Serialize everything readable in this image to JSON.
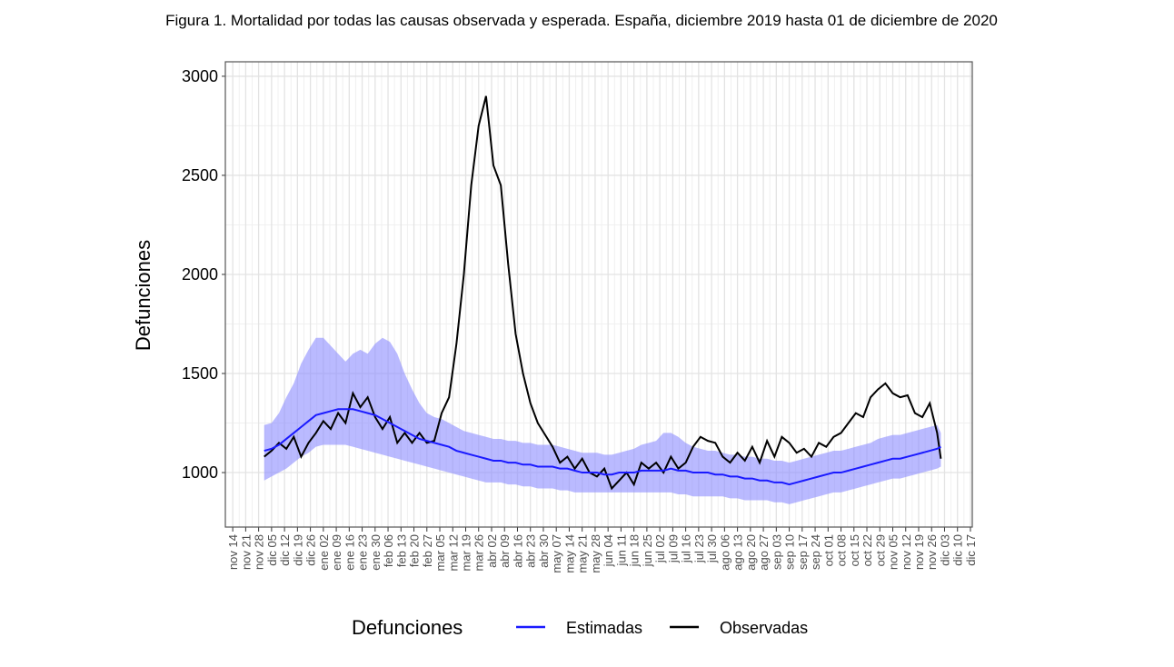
{
  "chart_data": {
    "type": "line",
    "title": "Figura 1. Mortalidad por todas las causas observada y esperada. España, diciembre 2019 hasta 01 de diciembre de 2020",
    "ylabel": "Defunciones",
    "legend_title": "Defunciones",
    "grid": true,
    "ylim": [
      725,
      3073
    ],
    "yticks": [
      1000,
      1500,
      2000,
      2500,
      3000
    ],
    "xlim": [
      "11-10",
      "12-18"
    ],
    "xticks": [
      {
        "value": "11-14",
        "label": "nov 14"
      },
      {
        "value": "11-21",
        "label": "nov 21"
      },
      {
        "value": "11-28",
        "label": "nov 28"
      },
      {
        "value": "12-05",
        "label": "dic 05"
      },
      {
        "value": "12-12",
        "label": "dic 12"
      },
      {
        "value": "12-19",
        "label": "dic 19"
      },
      {
        "value": "12-26",
        "label": "dic 26"
      },
      {
        "value": "01-02",
        "label": "ene 02"
      },
      {
        "value": "01-09",
        "label": "ene 09"
      },
      {
        "value": "01-16",
        "label": "ene 16"
      },
      {
        "value": "01-23",
        "label": "ene 23"
      },
      {
        "value": "01-30",
        "label": "ene 30"
      },
      {
        "value": "02-06",
        "label": "feb 06"
      },
      {
        "value": "02-13",
        "label": "feb 13"
      },
      {
        "value": "02-20",
        "label": "feb 20"
      },
      {
        "value": "02-27",
        "label": "feb 27"
      },
      {
        "value": "03-05",
        "label": "mar 05"
      },
      {
        "value": "03-12",
        "label": "mar 12"
      },
      {
        "value": "03-19",
        "label": "mar 19"
      },
      {
        "value": "03-26",
        "label": "mar 26"
      },
      {
        "value": "04-02",
        "label": "abr 02"
      },
      {
        "value": "04-09",
        "label": "abr 09"
      },
      {
        "value": "04-16",
        "label": "abr 16"
      },
      {
        "value": "04-23",
        "label": "abr 23"
      },
      {
        "value": "04-30",
        "label": "abr 30"
      },
      {
        "value": "05-07",
        "label": "may 07"
      },
      {
        "value": "05-14",
        "label": "may 14"
      },
      {
        "value": "05-21",
        "label": "may 21"
      },
      {
        "value": "05-28",
        "label": "may 28"
      },
      {
        "value": "06-04",
        "label": "jun 04"
      },
      {
        "value": "06-11",
        "label": "jun 11"
      },
      {
        "value": "06-18",
        "label": "jun 18"
      },
      {
        "value": "06-25",
        "label": "jun 25"
      },
      {
        "value": "07-02",
        "label": "jul 02"
      },
      {
        "value": "07-09",
        "label": "jul 09"
      },
      {
        "value": "07-16",
        "label": "jul 16"
      },
      {
        "value": "07-23",
        "label": "jul 23"
      },
      {
        "value": "07-30",
        "label": "jul 30"
      },
      {
        "value": "08-06",
        "label": "ago 06"
      },
      {
        "value": "08-13",
        "label": "ago 13"
      },
      {
        "value": "08-20",
        "label": "ago 20"
      },
      {
        "value": "08-27",
        "label": "ago 27"
      },
      {
        "value": "09-03",
        "label": "sep 03"
      },
      {
        "value": "09-10",
        "label": "sep 10"
      },
      {
        "value": "09-17",
        "label": "sep 17"
      },
      {
        "value": "09-24",
        "label": "sep 24"
      },
      {
        "value": "10-01",
        "label": "oct 01"
      },
      {
        "value": "10-08",
        "label": "oct 08"
      },
      {
        "value": "10-15",
        "label": "oct 15"
      },
      {
        "value": "10-22",
        "label": "oct 22"
      },
      {
        "value": "10-29",
        "label": "oct 29"
      },
      {
        "value": "11-05",
        "label": "nov 05"
      },
      {
        "value": "11-12",
        "label": "nov 12"
      },
      {
        "value": "11-19",
        "label": "nov 19"
      },
      {
        "value": "11-26",
        "label": "nov 26"
      },
      {
        "value": "12-03",
        "label": "dic 03"
      },
      {
        "value": "12-10",
        "label": "dic 10"
      },
      {
        "value": "12-17",
        "label": "dic 17"
      }
    ],
    "x": [
      "12-01",
      "12-05",
      "12-09",
      "12-13",
      "12-17",
      "12-21",
      "12-25",
      "12-29",
      "01-02",
      "01-06",
      "01-10",
      "01-14",
      "01-18",
      "01-22",
      "01-26",
      "01-30",
      "02-03",
      "02-07",
      "02-11",
      "02-15",
      "02-19",
      "02-23",
      "02-27",
      "03-02",
      "03-06",
      "03-10",
      "03-14",
      "03-18",
      "03-22",
      "03-26",
      "03-30",
      "04-03",
      "04-07",
      "04-11",
      "04-15",
      "04-19",
      "04-23",
      "04-27",
      "05-01",
      "05-05",
      "05-09",
      "05-13",
      "05-17",
      "05-21",
      "05-25",
      "05-29",
      "06-02",
      "06-06",
      "06-10",
      "06-14",
      "06-18",
      "06-22",
      "06-26",
      "06-30",
      "07-04",
      "07-08",
      "07-12",
      "07-16",
      "07-20",
      "07-24",
      "07-28",
      "08-01",
      "08-05",
      "08-09",
      "08-13",
      "08-17",
      "08-21",
      "08-25",
      "08-29",
      "09-02",
      "09-06",
      "09-10",
      "09-14",
      "09-18",
      "09-22",
      "09-26",
      "09-30",
      "10-04",
      "10-08",
      "10-12",
      "10-16",
      "10-20",
      "10-24",
      "10-28",
      "11-01",
      "11-05",
      "11-09",
      "11-13",
      "11-17",
      "11-21",
      "11-25",
      "11-29",
      "12-01"
    ],
    "series": [
      {
        "name": "Estimadas",
        "color": "#1a1aff",
        "band_color": "#8c8cff",
        "values": [
          1110,
          1120,
          1140,
          1170,
          1200,
          1230,
          1260,
          1290,
          1300,
          1310,
          1320,
          1320,
          1320,
          1310,
          1300,
          1290,
          1270,
          1250,
          1230,
          1210,
          1190,
          1170,
          1160,
          1150,
          1140,
          1130,
          1110,
          1100,
          1090,
          1080,
          1070,
          1060,
          1060,
          1050,
          1050,
          1040,
          1040,
          1030,
          1030,
          1030,
          1020,
          1020,
          1010,
          1000,
          1000,
          1000,
          990,
          990,
          1000,
          1000,
          1000,
          1010,
          1010,
          1010,
          1010,
          1020,
          1010,
          1010,
          1000,
          1000,
          1000,
          990,
          990,
          980,
          980,
          970,
          970,
          960,
          960,
          950,
          950,
          940,
          950,
          960,
          970,
          980,
          990,
          1000,
          1000,
          1010,
          1020,
          1030,
          1040,
          1050,
          1060,
          1070,
          1070,
          1080,
          1090,
          1100,
          1110,
          1120,
          1130
        ],
        "upper": [
          1240,
          1250,
          1300,
          1380,
          1450,
          1550,
          1620,
          1680,
          1680,
          1640,
          1600,
          1560,
          1600,
          1620,
          1600,
          1650,
          1680,
          1660,
          1600,
          1500,
          1420,
          1350,
          1300,
          1280,
          1270,
          1250,
          1230,
          1210,
          1200,
          1190,
          1180,
          1170,
          1170,
          1160,
          1160,
          1150,
          1150,
          1140,
          1140,
          1140,
          1130,
          1120,
          1110,
          1100,
          1100,
          1100,
          1090,
          1090,
          1100,
          1110,
          1120,
          1140,
          1150,
          1160,
          1200,
          1200,
          1180,
          1150,
          1130,
          1120,
          1110,
          1110,
          1100,
          1090,
          1090,
          1080,
          1080,
          1070,
          1070,
          1060,
          1060,
          1050,
          1060,
          1070,
          1080,
          1090,
          1100,
          1110,
          1110,
          1120,
          1130,
          1140,
          1150,
          1170,
          1180,
          1190,
          1190,
          1200,
          1210,
          1220,
          1230,
          1240,
          1200
        ],
        "lower": [
          960,
          980,
          1000,
          1020,
          1050,
          1080,
          1100,
          1130,
          1140,
          1140,
          1140,
          1140,
          1130,
          1120,
          1110,
          1100,
          1090,
          1080,
          1070,
          1060,
          1050,
          1040,
          1030,
          1020,
          1010,
          1000,
          990,
          980,
          970,
          960,
          950,
          950,
          950,
          940,
          940,
          930,
          930,
          920,
          920,
          920,
          910,
          910,
          900,
          900,
          900,
          900,
          900,
          900,
          900,
          900,
          900,
          900,
          900,
          900,
          900,
          900,
          890,
          890,
          880,
          880,
          880,
          880,
          880,
          870,
          870,
          860,
          860,
          860,
          860,
          850,
          850,
          840,
          850,
          860,
          870,
          880,
          890,
          900,
          900,
          910,
          920,
          930,
          940,
          950,
          960,
          970,
          970,
          980,
          990,
          1000,
          1010,
          1020,
          1030
        ]
      },
      {
        "name": "Observadas",
        "color": "#000000",
        "values": [
          1080,
          1110,
          1150,
          1120,
          1180,
          1080,
          1150,
          1200,
          1260,
          1220,
          1300,
          1250,
          1400,
          1330,
          1380,
          1280,
          1220,
          1280,
          1150,
          1200,
          1150,
          1200,
          1150,
          1160,
          1300,
          1380,
          1650,
          2000,
          2450,
          2750,
          2900,
          2550,
          2450,
          2050,
          1700,
          1500,
          1350,
          1250,
          1190,
          1130,
          1050,
          1080,
          1020,
          1070,
          1000,
          980,
          1020,
          920,
          960,
          1000,
          940,
          1050,
          1020,
          1050,
          1000,
          1080,
          1020,
          1050,
          1130,
          1180,
          1160,
          1150,
          1080,
          1050,
          1100,
          1060,
          1130,
          1050,
          1160,
          1080,
          1180,
          1150,
          1100,
          1120,
          1080,
          1150,
          1130,
          1180,
          1200,
          1250,
          1300,
          1280,
          1380,
          1420,
          1450,
          1400,
          1380,
          1390,
          1300,
          1280,
          1350,
          1200,
          1070
        ]
      }
    ]
  }
}
